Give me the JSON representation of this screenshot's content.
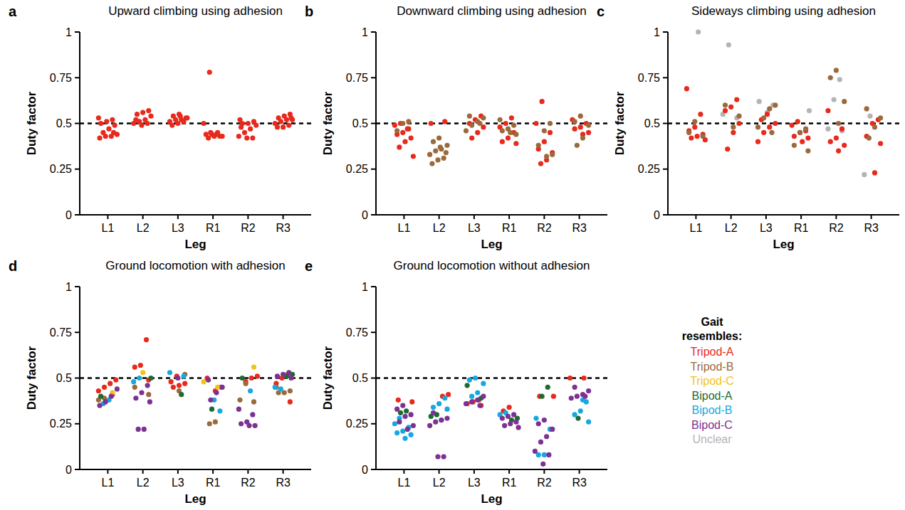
{
  "chart_data": [
    {
      "type": "scatter",
      "panel": "a",
      "title": "Upward climbing using adhesion",
      "x_label": "Leg",
      "y_label": "Duty factor",
      "categories": [
        "L1",
        "L2",
        "L3",
        "R1",
        "R2",
        "R3"
      ],
      "ylim": [
        0,
        1
      ],
      "yticks": [
        0,
        0.25,
        0.5,
        0.75,
        1
      ],
      "reference_line": 0.5,
      "series": [
        {
          "name": "Tripod-A",
          "color": "#e8291c",
          "values": [
            [
              0.53,
              0.52,
              0.51,
              0.5,
              0.49,
              0.47,
              0.45,
              0.44,
              0.43,
              0.43,
              0.42,
              0.45
            ],
            [
              0.57,
              0.56,
              0.55,
              0.54,
              0.52,
              0.51,
              0.5,
              0.5,
              0.49,
              0.52
            ],
            [
              0.55,
              0.54,
              0.53,
              0.52,
              0.52,
              0.51,
              0.51,
              0.5,
              0.49,
              0.53,
              0.54
            ],
            [
              0.78,
              0.5,
              0.45,
              0.44,
              0.44,
              0.43,
              0.43,
              0.42,
              0.43,
              0.44,
              0.45
            ],
            [
              0.52,
              0.51,
              0.5,
              0.5,
              0.49,
              0.47,
              0.45,
              0.43,
              0.42,
              0.42,
              0.48
            ],
            [
              0.55,
              0.54,
              0.53,
              0.52,
              0.52,
              0.51,
              0.5,
              0.49,
              0.48,
              0.48,
              0.53
            ]
          ]
        }
      ]
    },
    {
      "type": "scatter",
      "panel": "b",
      "title": "Downward climbing using adhesion",
      "x_label": "Leg",
      "y_label": "Duty factor",
      "categories": [
        "L1",
        "L2",
        "L3",
        "R1",
        "R2",
        "R3"
      ],
      "ylim": [
        0,
        1
      ],
      "yticks": [
        0,
        0.25,
        0.5,
        0.75,
        1
      ],
      "reference_line": 0.5,
      "series": [
        {
          "name": "Tripod-A",
          "color": "#e8291c",
          "values": [
            [
              0.5,
              0.49,
              0.47,
              0.45,
              0.44,
              0.42,
              0.4,
              0.37,
              0.32,
              0.47
            ],
            [
              0.5,
              0.51
            ],
            [
              0.54,
              0.52,
              0.5,
              0.48,
              0.45,
              0.42
            ],
            [
              0.53,
              0.5,
              0.48,
              0.45,
              0.42,
              0.4,
              0.39
            ],
            [
              0.62,
              0.5,
              0.45,
              0.4,
              0.36,
              0.34,
              0.3,
              0.28
            ],
            [
              0.52,
              0.5,
              0.48,
              0.47,
              0.45,
              0.44
            ]
          ]
        },
        {
          "name": "Tripod-B",
          "color": "#9b6a3c",
          "values": [
            [
              0.51,
              0.5,
              0.46
            ],
            [
              0.42,
              0.4,
              0.38,
              0.36,
              0.35,
              0.33,
              0.31,
              0.3,
              0.28,
              0.34,
              0.37
            ],
            [
              0.54,
              0.53,
              0.51,
              0.49,
              0.46,
              0.5
            ],
            [
              0.52,
              0.49,
              0.47,
              0.46,
              0.44,
              0.45
            ],
            [
              0.5,
              0.46,
              0.38,
              0.33,
              0.32
            ],
            [
              0.54,
              0.51,
              0.49,
              0.42,
              0.38
            ]
          ]
        }
      ]
    },
    {
      "type": "scatter",
      "panel": "c",
      "title": "Sideways climbing using adhesion",
      "x_label": "Leg",
      "y_label": "Duty factor",
      "categories": [
        "L1",
        "L2",
        "L3",
        "R1",
        "R2",
        "R3"
      ],
      "ylim": [
        0,
        1
      ],
      "yticks": [
        0,
        0.25,
        0.5,
        0.75,
        1
      ],
      "reference_line": 0.5,
      "series": [
        {
          "name": "Unclear",
          "color": "#b4b4b4",
          "values": [
            [
              1.0
            ],
            [
              0.93,
              0.55,
              0.53
            ],
            [
              0.62,
              0.6,
              0.56
            ],
            [
              0.57
            ],
            [
              0.74,
              0.63,
              0.47,
              0.46
            ],
            [
              0.54,
              0.22
            ]
          ]
        },
        {
          "name": "Tripod-A",
          "color": "#e8291c",
          "values": [
            [
              0.69,
              0.55,
              0.48,
              0.46,
              0.44,
              0.43,
              0.42,
              0.41
            ],
            [
              0.63,
              0.59,
              0.57,
              0.5,
              0.45,
              0.36
            ],
            [
              0.55,
              0.52,
              0.5,
              0.48,
              0.45,
              0.4
            ],
            [
              0.51,
              0.49,
              0.46,
              0.45,
              0.43,
              0.42,
              0.4
            ],
            [
              0.57,
              0.47,
              0.42,
              0.4,
              0.38,
              0.35
            ],
            [
              0.52,
              0.5,
              0.43,
              0.39,
              0.23
            ]
          ]
        },
        {
          "name": "Tripod-B",
          "color": "#9b6a3c",
          "values": [
            [
              0.51,
              0.45,
              0.43
            ],
            [
              0.6,
              0.54,
              0.48
            ],
            [
              0.6,
              0.58,
              0.53,
              0.48,
              0.45
            ],
            [
              0.47,
              0.45,
              0.38,
              0.35
            ],
            [
              0.79,
              0.75,
              0.62,
              0.5
            ],
            [
              0.58,
              0.53,
              0.48,
              0.42
            ]
          ]
        }
      ]
    },
    {
      "type": "scatter",
      "panel": "d",
      "title": "Ground locomotion with adhesion",
      "x_label": "Leg",
      "y_label": "Duty factor",
      "categories": [
        "L1",
        "L2",
        "L3",
        "R1",
        "R2",
        "R3"
      ],
      "ylim": [
        0,
        1
      ],
      "yticks": [
        0,
        0.25,
        0.5,
        0.75,
        1
      ],
      "reference_line": 0.5,
      "series": [
        {
          "name": "Tripod-A",
          "color": "#e8291c",
          "values": [
            [
              0.49,
              0.47,
              0.45,
              0.43,
              0.41
            ],
            [
              0.71,
              0.57,
              0.56,
              0.49
            ],
            [
              0.51,
              0.48,
              0.47,
              0.46,
              0.45
            ],
            [
              0.5,
              0.45,
              0.43
            ],
            [
              0.51,
              0.5,
              0.48
            ],
            [
              0.52,
              0.5,
              0.47,
              0.37
            ]
          ]
        },
        {
          "name": "Tripod-B",
          "color": "#9b6a3c",
          "values": [
            [
              0.39,
              0.38
            ],
            [
              0.45,
              0.41
            ],
            [
              0.52,
              0.43
            ],
            [
              0.26,
              0.25
            ],
            [
              0.47,
              0.38,
              0.37
            ],
            [
              0.45,
              0.43,
              0.42,
              0.42
            ]
          ]
        },
        {
          "name": "Tripod-C",
          "color": "#f0c419",
          "values": [
            [
              0.42
            ],
            [
              0.53
            ],
            [],
            [
              0.48,
              0.45
            ],
            [
              0.56
            ],
            []
          ]
        },
        {
          "name": "Bipod-A",
          "color": "#1e6b30",
          "values": [
            [
              0.4
            ],
            [
              0.5
            ],
            [
              0.41
            ],
            [
              0.33
            ],
            [
              0.5
            ],
            [
              0.52,
              0.51
            ]
          ]
        },
        {
          "name": "Bipod-B",
          "color": "#16a8e0",
          "values": [
            [
              0.38,
              0.36
            ],
            [
              0.5,
              0.48
            ],
            [
              0.53,
              0.51
            ],
            [
              0.32,
              0.38
            ],
            [
              0.43
            ],
            [
              0.44,
              0.45
            ]
          ]
        },
        {
          "name": "Bipod-C",
          "color": "#7b3294",
          "values": [
            [
              0.44,
              0.4,
              0.37,
              0.35
            ],
            [
              0.46,
              0.42,
              0.39,
              0.37,
              0.22,
              0.22
            ],
            [
              0.5
            ],
            [
              0.49,
              0.45,
              0.42,
              0.38
            ],
            [
              0.33,
              0.3,
              0.26,
              0.25,
              0.24,
              0.24
            ],
            [
              0.53,
              0.52,
              0.51,
              0.5
            ]
          ]
        }
      ]
    },
    {
      "type": "scatter",
      "panel": "e",
      "title": "Ground locomotion without adhesion",
      "x_label": "Leg",
      "y_label": "Duty factor",
      "categories": [
        "L1",
        "L2",
        "L3",
        "R1",
        "R2",
        "R3"
      ],
      "ylim": [
        0,
        1
      ],
      "yticks": [
        0,
        0.25,
        0.5,
        0.75,
        1
      ],
      "reference_line": 0.5,
      "series": [
        {
          "name": "Tripod-A",
          "color": "#e8291c",
          "values": [
            [
              0.38,
              0.37
            ],
            [
              0.41,
              0.4
            ],
            [
              0.38,
              0.37,
              0.36,
              0.35
            ],
            [
              0.34,
              0.32
            ],
            [
              0.4,
              0.4
            ],
            [
              0.5,
              0.5
            ]
          ]
        },
        {
          "name": "Bipod-A",
          "color": "#1e6b30",
          "values": [
            [
              0.32,
              0.31
            ],
            [
              0.3,
              0.29
            ],
            [
              0.46,
              0.39
            ],
            [
              0.28,
              0.27
            ],
            [
              0.45,
              0.4
            ],
            [
              0.28
            ]
          ]
        },
        {
          "name": "Bipod-B",
          "color": "#16a8e0",
          "values": [
            [
              0.25,
              0.23,
              0.21,
              0.2,
              0.19,
              0.17,
              0.28
            ],
            [
              0.39,
              0.36,
              0.34,
              0.33,
              0.27
            ],
            [
              0.5,
              0.49,
              0.47,
              0.42,
              0.4
            ],
            [
              0.31,
              0.3
            ],
            [
              0.28,
              0.22,
              0.08,
              0.08
            ],
            [
              0.37,
              0.32,
              0.3,
              0.26,
              0.38
            ]
          ]
        },
        {
          "name": "Bipod-C",
          "color": "#7b3294",
          "values": [
            [
              0.35,
              0.33,
              0.3,
              0.29,
              0.26,
              0.24,
              0.22
            ],
            [
              0.31,
              0.28,
              0.27,
              0.26,
              0.24,
              0.07,
              0.07
            ],
            [
              0.4,
              0.38,
              0.37,
              0.36,
              0.35
            ],
            [
              0.3,
              0.29,
              0.28,
              0.26,
              0.25,
              0.24,
              0.23
            ],
            [
              0.27,
              0.25,
              0.22,
              0.18,
              0.15,
              0.1,
              0.08,
              0.03
            ],
            [
              0.45,
              0.43,
              0.41,
              0.4,
              0.39,
              0.4
            ]
          ]
        }
      ]
    }
  ],
  "legend_box": {
    "title": "Gait resembles:",
    "items": [
      {
        "name": "Tripod-A",
        "color": "#e8291c"
      },
      {
        "name": "Tripod-B",
        "color": "#9b6a3c"
      },
      {
        "name": "Tripod-C",
        "color": "#f0c419"
      },
      {
        "name": "Bipod-A",
        "color": "#1e6b30"
      },
      {
        "name": "Bipod-B",
        "color": "#16a8e0"
      },
      {
        "name": "Bipod-C",
        "color": "#7b3294"
      },
      {
        "name": "Unclear",
        "color": "#b4b4b4"
      }
    ]
  }
}
